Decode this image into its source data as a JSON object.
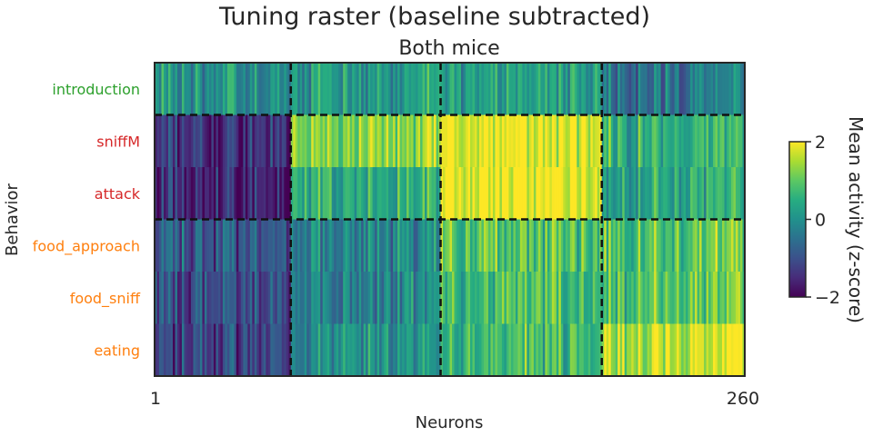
{
  "chart_data": {
    "type": "heatmap",
    "title": "Tuning raster (baseline subtracted)",
    "subtitle": "Both mice",
    "xlabel": "Neurons",
    "ylabel": "Behavior",
    "x_ticks": [
      "1",
      "260"
    ],
    "n_neurons": 260,
    "rows": [
      {
        "label": "introduction",
        "color": "#2ca02c"
      },
      {
        "label": "sniffM",
        "color": "#d62728"
      },
      {
        "label": "attack",
        "color": "#d62728"
      },
      {
        "label": "food_approach",
        "color": "#ff7f0e"
      },
      {
        "label": "food_sniff",
        "color": "#ff7f0e"
      },
      {
        "label": "eating",
        "color": "#ff7f0e"
      }
    ],
    "column_groups": [
      {
        "start": 1,
        "end": 60,
        "row_means": [
          0.0,
          -1.4,
          -1.6,
          -0.9,
          -1.0,
          -1.1
        ]
      },
      {
        "start": 61,
        "end": 126,
        "row_means": [
          0.2,
          1.3,
          0.5,
          -0.2,
          -0.2,
          0.0
        ]
      },
      {
        "start": 127,
        "end": 197,
        "row_means": [
          0.3,
          1.9,
          2.0,
          0.9,
          0.8,
          0.7
        ]
      },
      {
        "start": 198,
        "end": 260,
        "row_means": [
          -0.4,
          0.6,
          0.4,
          0.9,
          0.9,
          1.7
        ]
      }
    ],
    "row_dividers_after": [
      1,
      3
    ],
    "column_dividers_after": [
      60,
      126,
      197
    ],
    "colorbar": {
      "label": "Mean activity (z-score)",
      "min": -2,
      "max": 2,
      "ticks": [
        "2",
        "0",
        "−2"
      ],
      "colormap": "viridis"
    }
  }
}
